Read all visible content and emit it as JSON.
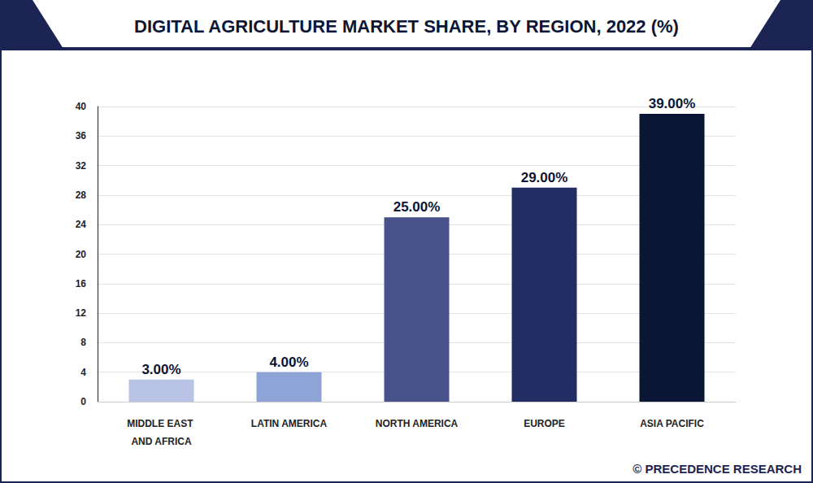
{
  "chart_data": {
    "type": "bar",
    "title": "DIGITAL AGRICULTURE MARKET SHARE, BY REGION, 2022 (%)",
    "categories": [
      "MIDDLE EAST AND AFRICA",
      "LATIN AMERICA",
      "NORTH AMERICA",
      "EUROPE",
      "ASIA PACIFIC"
    ],
    "values": [
      3,
      4,
      25,
      29,
      39
    ],
    "value_labels": [
      "3.00%",
      "4.00%",
      "25.00%",
      "29.00%",
      "39.00%"
    ],
    "colors": [
      "#b8c3e6",
      "#8ea3d6",
      "#465289",
      "#222d63",
      "#0b1535"
    ],
    "ylim": [
      0,
      40
    ],
    "yticks": [
      0,
      4,
      8,
      12,
      16,
      20,
      24,
      28,
      32,
      36,
      40
    ],
    "grid": true,
    "data_labels": true,
    "annotations": [
      "© PRECEDENCE RESEARCH"
    ]
  }
}
